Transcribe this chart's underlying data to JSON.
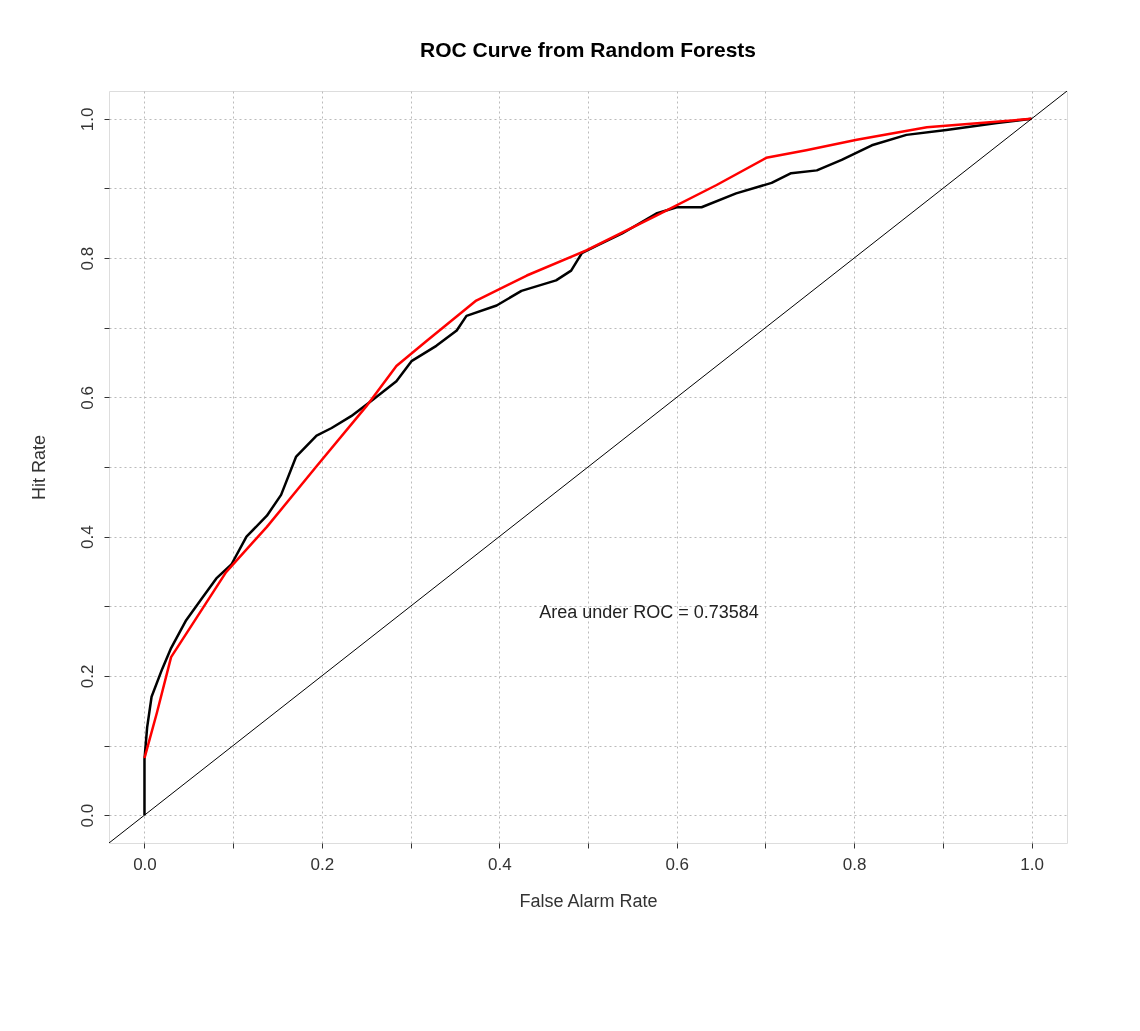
{
  "chart_data": {
    "type": "line",
    "title": "ROC Curve from Random Forests",
    "xlabel": "False Alarm Rate",
    "ylabel": "Hit Rate",
    "annotations": [
      "Area under ROC = 0.73584"
    ],
    "xlim": [
      -0.04,
      1.04
    ],
    "ylim": [
      -0.04,
      1.04
    ],
    "xticks": [
      {
        "value": 0,
        "label": "0.0"
      },
      {
        "value": 0.1,
        "label": null
      },
      0.2,
      {
        "value": 0.3,
        "label": null
      },
      0.4,
      {
        "value": 0.5,
        "label": null
      },
      0.6,
      {
        "value": 0.7,
        "label": null
      },
      0.8,
      {
        "value": 0.9,
        "label": null
      },
      {
        "value": 1,
        "label": "1.0"
      }
    ],
    "yticks": [
      {
        "value": 0,
        "label": "0.0"
      },
      {
        "value": 0.1,
        "label": null
      },
      0.2,
      {
        "value": 0.3,
        "label": null
      },
      0.4,
      {
        "value": 0.5,
        "label": null
      },
      0.6,
      {
        "value": 0.7,
        "label": null
      },
      0.8,
      {
        "value": 0.9,
        "label": null
      },
      {
        "value": 1,
        "label": "1.0"
      }
    ],
    "grid": true,
    "marker": "none",
    "line_style": "solid",
    "series": [
      {
        "color": "#000000",
        "x": [
          0,
          0,
          0.003,
          0.008,
          0.02,
          0.03,
          0.047,
          0.064,
          0.081,
          0.098,
          0.115,
          0.138,
          0.154,
          0.171,
          0.194,
          0.211,
          0.233,
          0.256,
          0.284,
          0.301,
          0.329,
          0.352,
          0.363,
          0.397,
          0.425,
          0.464,
          0.481,
          0.493,
          0.51,
          0.538,
          0.577,
          0.6,
          0.628,
          0.667,
          0.707,
          0.729,
          0.758,
          0.786,
          0.82,
          0.859,
          0.904,
          0.961,
          1
        ],
        "values": [
          0,
          0.08,
          0.126,
          0.17,
          0.21,
          0.24,
          0.28,
          0.31,
          0.34,
          0.36,
          0.4,
          0.43,
          0.46,
          0.515,
          0.545,
          0.556,
          0.573,
          0.595,
          0.623,
          0.652,
          0.674,
          0.696,
          0.717,
          0.732,
          0.753,
          0.768,
          0.782,
          0.807,
          0.818,
          0.835,
          0.864,
          0.873,
          0.873,
          0.893,
          0.908,
          0.922,
          0.926,
          0.941,
          0.962,
          0.977,
          0.984,
          0.994,
          1
        ]
      },
      {
        "color": "#ff0000",
        "x": [
          0,
          0.014,
          0.03,
          0.059,
          0.092,
          0.138,
          0.194,
          0.25,
          0.284,
          0.318,
          0.374,
          0.431,
          0.498,
          0.577,
          0.645,
          0.701,
          0.746,
          0.803,
          0.882,
          1
        ],
        "values": [
          0.082,
          0.147,
          0.227,
          0.284,
          0.349,
          0.414,
          0.501,
          0.587,
          0.645,
          0.681,
          0.739,
          0.775,
          0.811,
          0.861,
          0.905,
          0.944,
          0.955,
          0.97,
          0.988,
          1
        ]
      },
      {
        "color": "#000000",
        "x": [
          -0.04,
          1.04
        ],
        "values": [
          -0.04,
          1.04
        ]
      }
    ]
  }
}
